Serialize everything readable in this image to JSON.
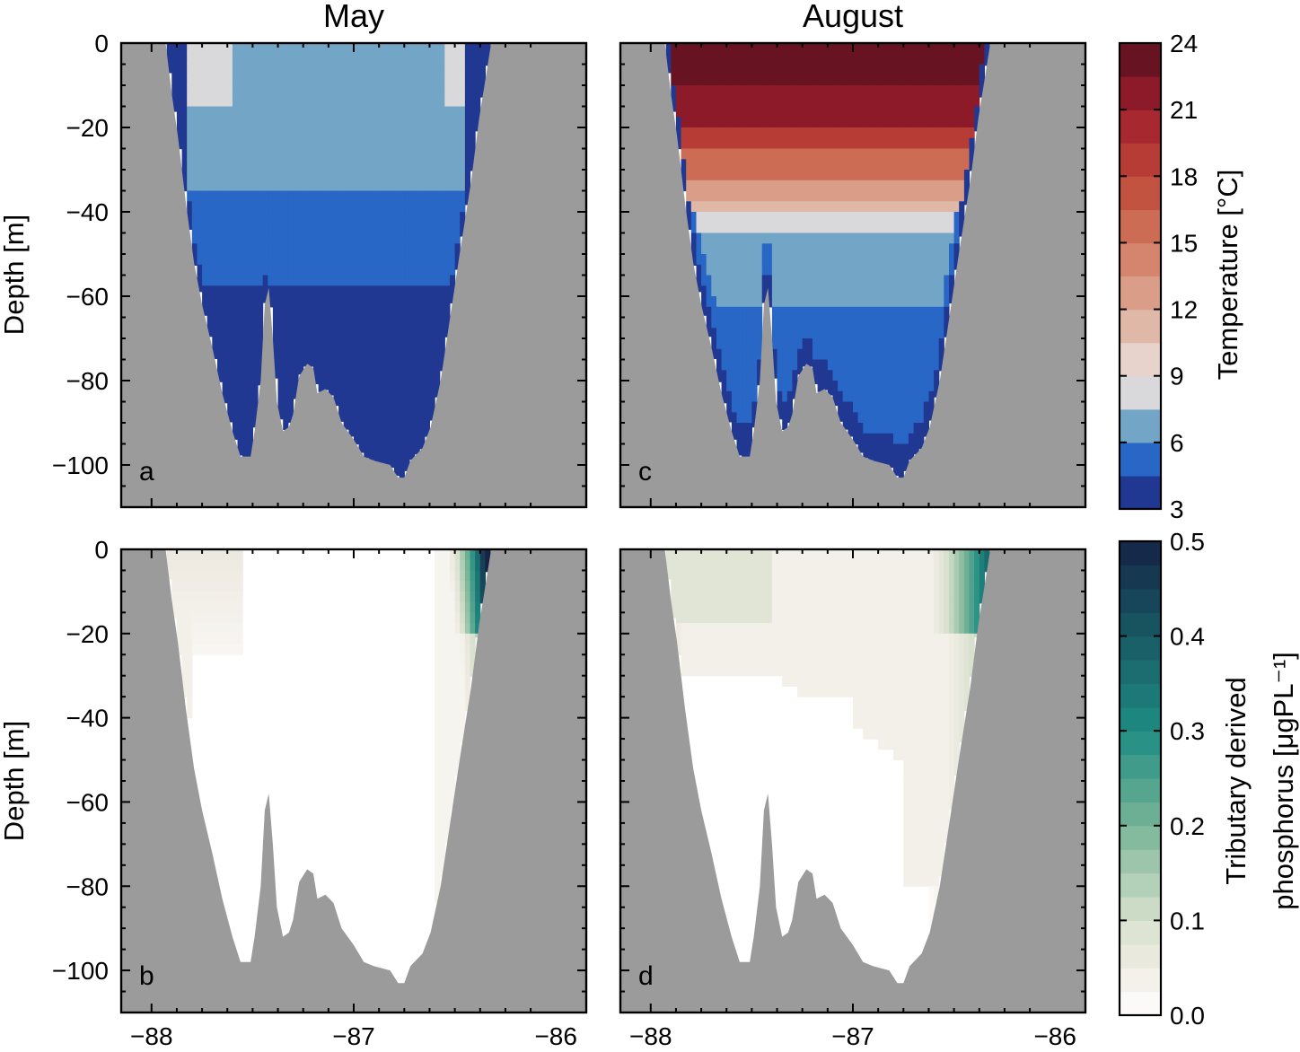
{
  "chart_data": [
    {
      "type": "heatmap",
      "panel": "a",
      "title": "May",
      "ylabel": "Depth [m]",
      "xlim": [
        -88.1,
        -85.9
      ],
      "ylim": [
        -110,
        0
      ],
      "yticks": [
        0,
        -20,
        -40,
        -60,
        -80,
        -100
      ],
      "ytick_labels": [
        "0",
        "−20",
        "−40",
        "−60",
        "−80",
        "−100"
      ],
      "variable": "temperature",
      "layers": [
        {
          "depth_range": [
            0,
            -5
          ],
          "left": [
            [
              "-87.95",
              "-87.85",
              8.6
            ],
            [
              "-87.85",
              "-87.6",
              8.0
            ],
            [
              "-87.6",
              "-86.55",
              7.3
            ],
            [
              "-86.55",
              "-86.35",
              8.3
            ]
          ]
        },
        {
          "depth_range": [
            -5,
            -15
          ],
          "left": [
            [
              "-87.95",
              "-87.85",
              8.3
            ],
            [
              "-87.85",
              "-87.6",
              7.7
            ],
            [
              "-87.6",
              "-86.55",
              7.2
            ],
            [
              "-86.55",
              "-86.35",
              8.0
            ]
          ]
        },
        {
          "depth_range": [
            -15,
            -24
          ],
          "left": [
            [
              "-87.95",
              "-87.8",
              7.0
            ],
            [
              "-87.8",
              "-87.3",
              7.1
            ],
            [
              "-87.3",
              "-86.9",
              6.3
            ],
            [
              "-86.9",
              "-86.35",
              7.3
            ]
          ]
        },
        {
          "depth_range": [
            -24,
            -36
          ],
          "left": [
            [
              "-87.93",
              "-87.3",
              6.1
            ],
            [
              "-87.3",
              "-86.6",
              6.2
            ],
            [
              "-86.6",
              "-86.38",
              6.8
            ]
          ]
        },
        {
          "depth_range": [
            -36,
            -52
          ],
          "left": [
            [
              "-87.9",
              "-86.42",
              5.5
            ]
          ]
        },
        {
          "depth_range": [
            -52,
            -58
          ],
          "left": [
            [
              "-87.85",
              "-86.45",
              5.3
            ]
          ]
        },
        {
          "depth_range": [
            -58,
            -90
          ],
          "left": [
            [
              "-87.82",
              "-86.48",
              4.4
            ]
          ]
        },
        {
          "depth_range": [
            -90,
            -103
          ],
          "left": [
            [
              "-87.45",
              "-86.55",
              4.4
            ]
          ]
        }
      ]
    },
    {
      "type": "heatmap",
      "panel": "b",
      "ylabel": "Depth [m]",
      "xlabel": "",
      "xlim": [
        -88.1,
        -85.9
      ],
      "ylim": [
        -110,
        0
      ],
      "xticks": [
        -88,
        -87,
        -86
      ],
      "xtick_labels": [
        "−88",
        "−87",
        "−86"
      ],
      "variable": "tributary derived phosphorus",
      "summary": "Mostly 0 except for plume near -86.4 (up to 0.5) and light values near -87.9 at the surface"
    },
    {
      "type": "heatmap",
      "panel": "c",
      "title": "August",
      "xlim": [
        -88.1,
        -85.9
      ],
      "ylim": [
        -110,
        0
      ],
      "variable": "temperature",
      "layers": [
        {
          "depth_range": [
            0,
            -10
          ],
          "value": 22.5
        },
        {
          "depth_range": [
            -10,
            -20
          ],
          "value": 21.5
        },
        {
          "depth_range": [
            -20,
            -30
          ],
          "value": 17.5
        },
        {
          "depth_range": [
            -30,
            -35
          ],
          "value": 13.0
        },
        {
          "depth_range": [
            -35,
            -42
          ],
          "value": 11.0
        },
        {
          "depth_range": [
            -42,
            -50
          ],
          "value": 8.5
        },
        {
          "depth_range": [
            -50,
            -60
          ],
          "value": 6.3
        },
        {
          "depth_range": [
            -60,
            -95
          ],
          "value": 5.5
        },
        {
          "depth_range": [
            -65,
            -100
          ],
          "value": 4.5
        }
      ]
    },
    {
      "type": "heatmap",
      "panel": "d",
      "xlim": [
        -88.1,
        -85.9
      ],
      "ylim": [
        -110,
        0
      ],
      "xticks": [
        -88,
        -87,
        -86
      ],
      "xtick_labels": [
        "−88",
        "−87",
        "−86"
      ],
      "variable": "tributary derived phosphorus",
      "summary": "Light values (0.02-0.05) across upper 30-50 m, plume near -86.4 up to 0.35"
    }
  ],
  "colorbars": {
    "temperature": {
      "label": "Temperature [°C]",
      "ticks": [
        "3",
        "6",
        "9",
        "12",
        "15",
        "18",
        "21",
        "24"
      ],
      "range": [
        3,
        24
      ]
    },
    "phosphorus": {
      "label_line1": "Tributary derived",
      "label_line2": "phosphorus [μgPL⁻¹]",
      "ticks": [
        "0.0",
        "0.1",
        "0.2",
        "0.3",
        "0.4",
        "0.5"
      ],
      "range": [
        0,
        0.5
      ]
    }
  },
  "panel_letters": [
    "a",
    "b",
    "c",
    "d"
  ],
  "titles": {
    "left": "May",
    "right": "August"
  },
  "colors": {
    "bathymetry": "#9b9b9b",
    "outline": "#000000"
  }
}
